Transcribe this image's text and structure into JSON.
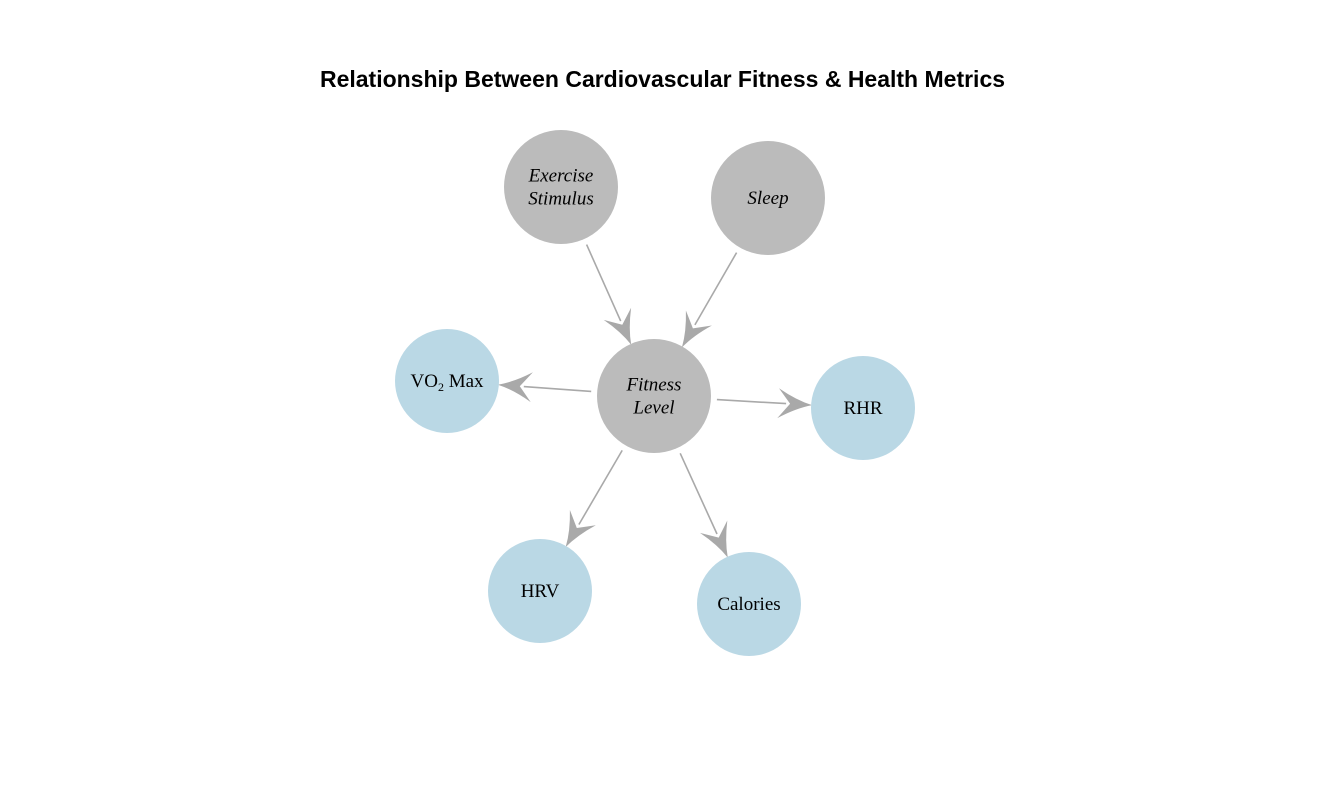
{
  "title": "Relationship Between Cardiovascular Fitness & Health Metrics",
  "colors": {
    "driver_node": "#bbbbbb",
    "metric_node": "#bad8e5",
    "edge": "#a9a9a9",
    "text": "#000000"
  },
  "nodes": [
    {
      "id": "exercise",
      "name": "node-exercise-stimulus",
      "kind": "driver",
      "lines": [
        "Exercise",
        "Stimulus"
      ]
    },
    {
      "id": "sleep",
      "name": "node-sleep",
      "kind": "driver",
      "lines": [
        "Sleep"
      ]
    },
    {
      "id": "fitness",
      "name": "node-fitness-level",
      "kind": "driver",
      "lines": [
        "Fitness",
        "Level"
      ]
    },
    {
      "id": "vo2",
      "name": "node-vo2-max",
      "kind": "metric",
      "text": {
        "main": "VO",
        "sub": "2",
        "tail": " Max"
      }
    },
    {
      "id": "rhr",
      "name": "node-rhr",
      "kind": "metric",
      "lines": [
        "RHR"
      ]
    },
    {
      "id": "hrv",
      "name": "node-hrv",
      "kind": "metric",
      "lines": [
        "HRV"
      ]
    },
    {
      "id": "calories",
      "name": "node-calories",
      "kind": "metric",
      "lines": [
        "Calories"
      ]
    }
  ],
  "edges": [
    {
      "from": "exercise",
      "to": "fitness"
    },
    {
      "from": "sleep",
      "to": "fitness"
    },
    {
      "from": "fitness",
      "to": "vo2"
    },
    {
      "from": "fitness",
      "to": "rhr"
    },
    {
      "from": "fitness",
      "to": "hrv"
    },
    {
      "from": "fitness",
      "to": "calories"
    }
  ]
}
